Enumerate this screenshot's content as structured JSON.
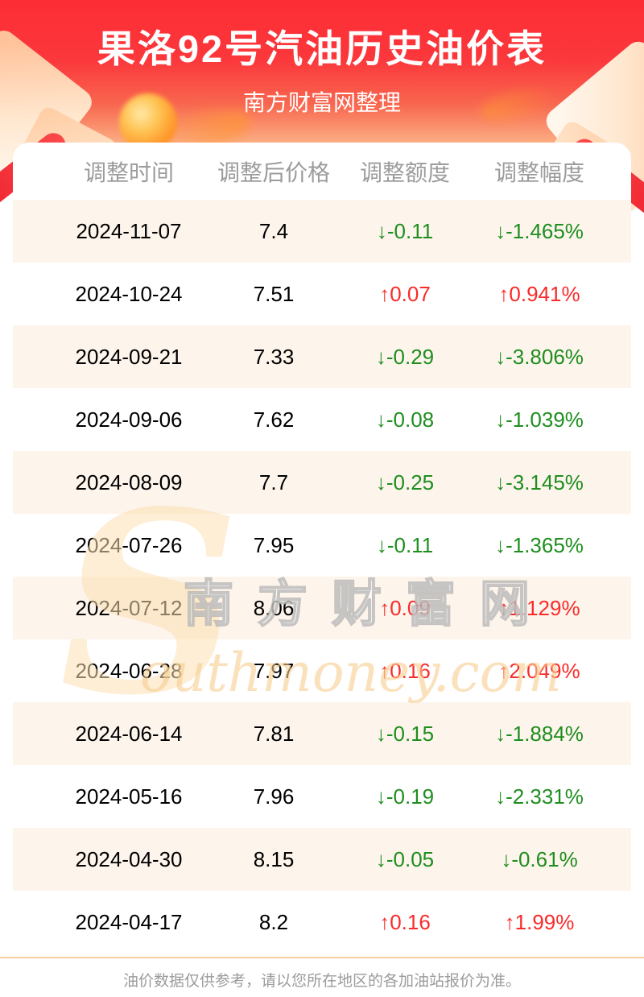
{
  "header": {
    "title": "果洛92号汽油历史油价表",
    "subtitle": "南方财富网整理"
  },
  "table": {
    "columns": [
      "调整时间",
      "调整后价格",
      "调整额度",
      "调整幅度"
    ],
    "arrow_up": "↑",
    "arrow_down": "↓",
    "rows": [
      {
        "date": "2024-11-07",
        "price": "7.4",
        "change": "-0.11",
        "percent": "-1.465%",
        "direction": "down"
      },
      {
        "date": "2024-10-24",
        "price": "7.51",
        "change": "0.07",
        "percent": "0.941%",
        "direction": "up"
      },
      {
        "date": "2024-09-21",
        "price": "7.33",
        "change": "-0.29",
        "percent": "-3.806%",
        "direction": "down"
      },
      {
        "date": "2024-09-06",
        "price": "7.62",
        "change": "-0.08",
        "percent": "-1.039%",
        "direction": "down"
      },
      {
        "date": "2024-08-09",
        "price": "7.7",
        "change": "-0.25",
        "percent": "-3.145%",
        "direction": "down"
      },
      {
        "date": "2024-07-26",
        "price": "7.95",
        "change": "-0.11",
        "percent": "-1.365%",
        "direction": "down"
      },
      {
        "date": "2024-07-12",
        "price": "8.06",
        "change": "0.09",
        "percent": "1.129%",
        "direction": "up"
      },
      {
        "date": "2024-06-28",
        "price": "7.97",
        "change": "0.16",
        "percent": "2.049%",
        "direction": "up"
      },
      {
        "date": "2024-06-14",
        "price": "7.81",
        "change": "-0.15",
        "percent": "-1.884%",
        "direction": "down"
      },
      {
        "date": "2024-05-16",
        "price": "7.96",
        "change": "-0.19",
        "percent": "-2.331%",
        "direction": "down"
      },
      {
        "date": "2024-04-30",
        "price": "8.15",
        "change": "-0.05",
        "percent": "-0.61%",
        "direction": "down"
      },
      {
        "date": "2024-04-17",
        "price": "8.2",
        "change": "0.16",
        "percent": "1.99%",
        "direction": "up"
      }
    ]
  },
  "watermark": {
    "initial": "S",
    "cn": "南方财富网",
    "en": "outhmoney.com"
  },
  "footer": {
    "note": "油价数据仅供参考，请以您所在地区的各加油站报价为准。"
  },
  "colors": {
    "banner_top": "#fc2d34",
    "banner_bottom": "#fbb286",
    "up_red": "#f92b2b",
    "down_green": "#1e8e1e",
    "alt_row_bg": "#fdf4ec",
    "divider_tan": "#f6cf9b",
    "muted_text": "#9c9c9c"
  }
}
